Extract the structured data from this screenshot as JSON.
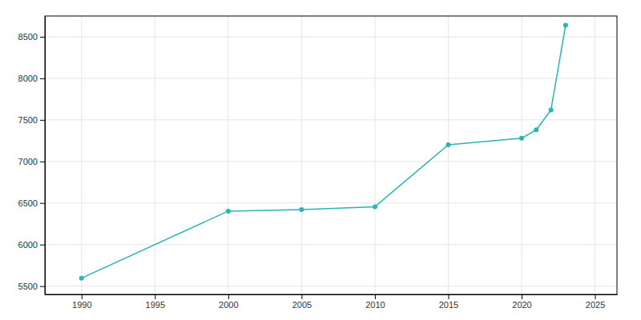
{
  "chart_data": {
    "type": "line",
    "x": [
      1990,
      2000,
      2005,
      2010,
      2015,
      2020,
      2021,
      2022,
      2023
    ],
    "values": [
      5596,
      6402,
      6420,
      6455,
      7200,
      7280,
      7380,
      7620,
      8640
    ],
    "color": "#2ab5b5",
    "marker": "circle",
    "xlim": [
      1987.5,
      2026.5
    ],
    "ylim": [
      5400,
      8750
    ],
    "xticks": [
      1990,
      1995,
      2000,
      2005,
      2010,
      2015,
      2020,
      2025
    ],
    "yticks": [
      5500,
      6000,
      6500,
      7000,
      7500,
      8000,
      8500
    ],
    "grid": true
  }
}
